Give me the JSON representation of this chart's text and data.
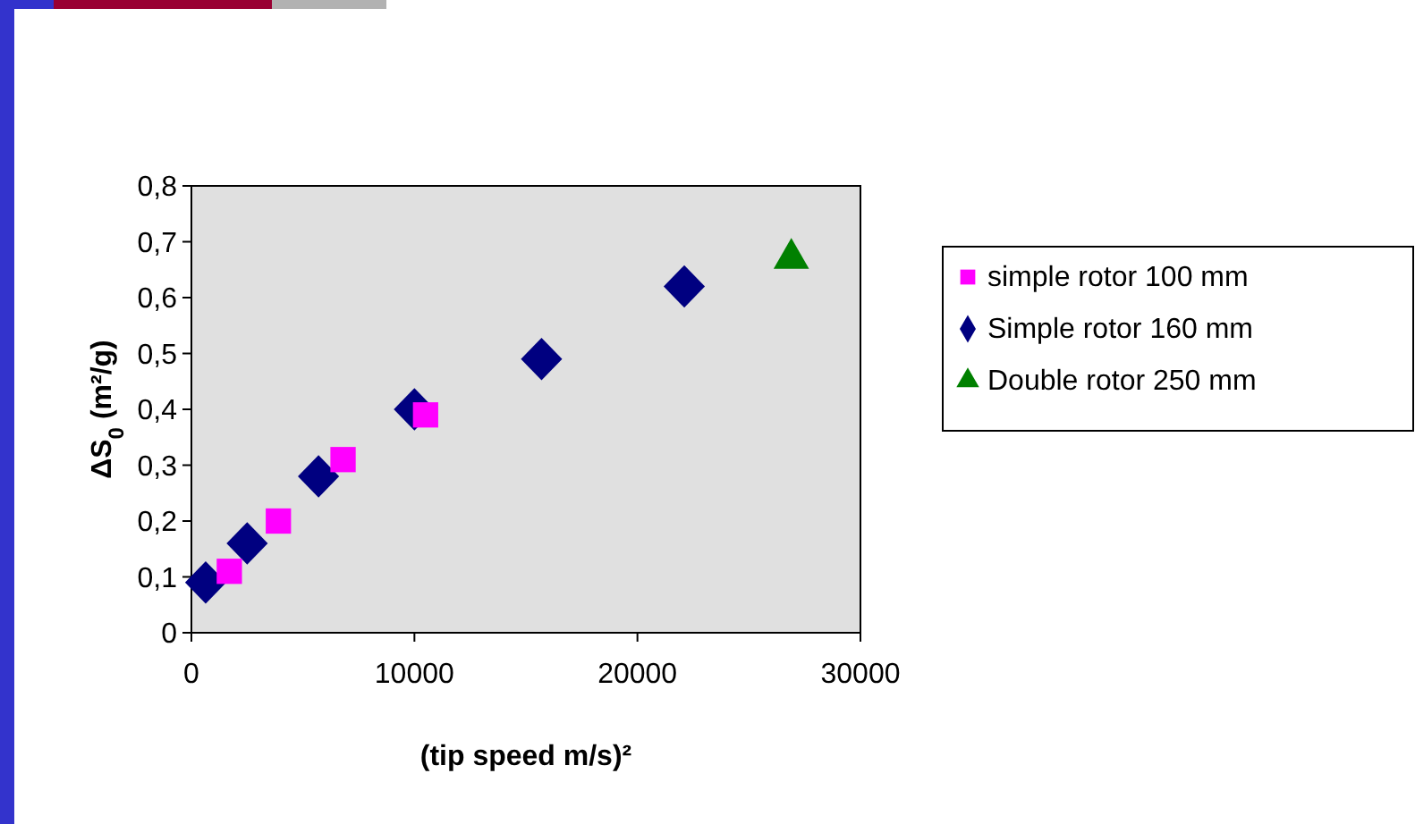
{
  "chart_data": {
    "type": "scatter",
    "xlabel": "(tip speed m/s)²",
    "ylabel": "ΔS$_{0}$ (m²/g)",
    "xlim": [
      0,
      30000
    ],
    "xticks": [
      0,
      10000,
      20000,
      30000
    ],
    "ylim": [
      0,
      0.8
    ],
    "yticks": [
      0,
      {
        "value": 0.1,
        "label": "0,1"
      },
      {
        "value": 0.2,
        "label": "0,2"
      },
      {
        "value": 0.3,
        "label": "0,3"
      },
      {
        "value": 0.4,
        "label": "0,4"
      },
      {
        "value": 0.5,
        "label": "0,5"
      },
      {
        "value": 0.6,
        "label": "0,6"
      },
      {
        "value": 0.7,
        "label": "0,7"
      },
      {
        "value": 0.8,
        "label": "0,8"
      }
    ],
    "grid": false,
    "legend": "right",
    "series": [
      {
        "name": "simple rotor 100 mm",
        "color": "#ff00ff",
        "marker": "square",
        "x": [
          1700,
          3900,
          6800,
          10500
        ],
        "values": [
          0.11,
          0.2,
          0.31,
          0.39
        ]
      },
      {
        "name": "Simple rotor 160 mm",
        "color": "#000080",
        "marker": "diamond",
        "x": [
          640,
          2500,
          5700,
          10000,
          15700,
          22100
        ],
        "values": [
          0.09,
          0.16,
          0.28,
          0.4,
          0.49,
          0.62
        ]
      },
      {
        "name": "Double rotor 250 mm",
        "color": "#008000",
        "marker": "triangle",
        "x": [
          26900
        ],
        "values": [
          0.67
        ]
      }
    ]
  }
}
